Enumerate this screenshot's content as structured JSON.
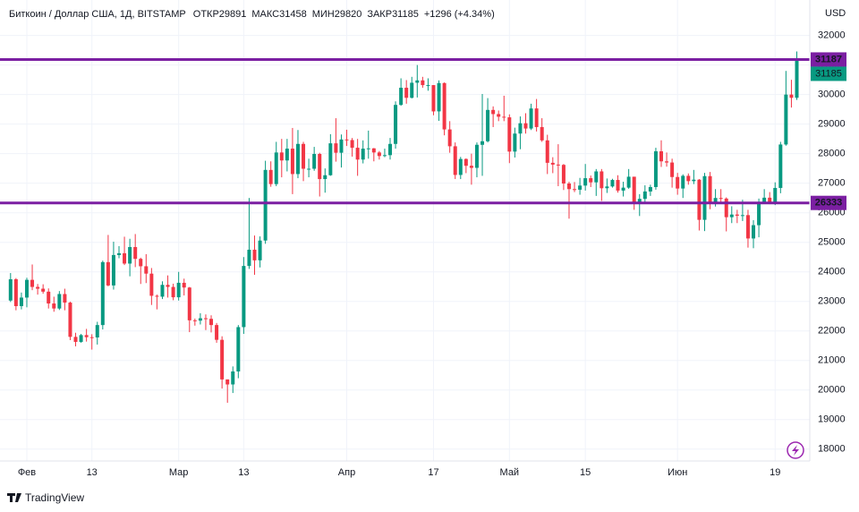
{
  "chart_data": {
    "type": "candlestick",
    "title": "Биткоин / Доллар США, 1Д, BITSTAMP",
    "ohlc_labels": [
      "ОТКР",
      "МАКС",
      "МИН",
      "ЗАКР"
    ],
    "change": "+1296 (+4.34%)",
    "currency": "USD",
    "brand": "TradingView",
    "up_color": "#089981",
    "down_color": "#f23645",
    "grid": true,
    "ylim": [
      17600,
      33200
    ],
    "yticks": [
      18000,
      19000,
      20000,
      21000,
      22000,
      23000,
      24000,
      25000,
      26000,
      27000,
      28000,
      29000,
      30000,
      31000,
      32000
    ],
    "levels": [
      {
        "value": 31187,
        "color": "#7b1fa2"
      },
      {
        "value": 26333,
        "color": "#7b1fa2"
      }
    ],
    "xticks": [
      {
        "value": "02-01",
        "label": "Фев"
      },
      {
        "value": "02-13",
        "label": "13"
      },
      {
        "value": "03-01",
        "label": "Мар"
      },
      {
        "value": "03-13",
        "label": "13"
      },
      {
        "value": "04-01",
        "label": "Апр"
      },
      {
        "value": "04-17",
        "label": "17"
      },
      {
        "value": "05-01",
        "label": "Май"
      },
      {
        "value": "05-15",
        "label": "15"
      },
      {
        "value": "06-01",
        "label": "Июн"
      },
      {
        "value": "06-19",
        "label": "19"
      }
    ],
    "x": [
      "01-29",
      "01-30",
      "01-31",
      "02-01",
      "02-02",
      "02-03",
      "02-04",
      "02-05",
      "02-06",
      "02-07",
      "02-08",
      "02-09",
      "02-10",
      "02-11",
      "02-12",
      "02-13",
      "02-14",
      "02-15",
      "02-16",
      "02-17",
      "02-18",
      "02-19",
      "02-20",
      "02-21",
      "02-22",
      "02-23",
      "02-24",
      "02-25",
      "02-26",
      "02-27",
      "02-28",
      "03-01",
      "03-02",
      "03-03",
      "03-04",
      "03-05",
      "03-06",
      "03-07",
      "03-08",
      "03-09",
      "03-10",
      "03-11",
      "03-12",
      "03-13",
      "03-14",
      "03-15",
      "03-16",
      "03-17",
      "03-18",
      "03-19",
      "03-20",
      "03-21",
      "03-22",
      "03-23",
      "03-24",
      "03-25",
      "03-26",
      "03-27",
      "03-28",
      "03-29",
      "03-30",
      "03-31",
      "04-01",
      "04-02",
      "04-03",
      "04-04",
      "04-05",
      "04-06",
      "04-07",
      "04-08",
      "04-09",
      "04-10",
      "04-11",
      "04-12",
      "04-13",
      "04-14",
      "04-15",
      "04-16",
      "04-17",
      "04-18",
      "04-19",
      "04-20",
      "04-21",
      "04-22",
      "04-23",
      "04-24",
      "04-25",
      "04-26",
      "04-27",
      "04-28",
      "04-29",
      "04-30",
      "05-01",
      "05-02",
      "05-03",
      "05-04",
      "05-05",
      "05-06",
      "05-07",
      "05-08",
      "05-09",
      "05-10",
      "05-11",
      "05-12",
      "05-13",
      "05-14",
      "05-15",
      "05-16",
      "05-17",
      "05-18",
      "05-19",
      "05-20",
      "05-21",
      "05-22",
      "05-23",
      "05-24",
      "05-25",
      "05-26",
      "05-27",
      "05-28",
      "05-29",
      "05-30",
      "05-31",
      "06-01",
      "06-02",
      "06-03",
      "06-04",
      "06-05",
      "06-06",
      "06-07",
      "06-08",
      "06-09",
      "06-10",
      "06-11",
      "06-12",
      "06-13",
      "06-14",
      "06-15",
      "06-16",
      "06-17",
      "06-18",
      "06-19",
      "06-20",
      "06-21",
      "06-22",
      "06-23"
    ],
    "open": [
      23030,
      23750,
      22840,
      23130,
      23730,
      23490,
      23430,
      23330,
      22930,
      22760,
      23250,
      22960,
      21800,
      21630,
      21860,
      21790,
      21780,
      22200,
      24330,
      23540,
      24570,
      24630,
      24280,
      24840,
      24440,
      24190,
      23940,
      23190,
      23160,
      23560,
      23490,
      23140,
      23630,
      23470,
      22360,
      22350,
      22430,
      22410,
      22200,
      21700,
      20360,
      20190,
      20630,
      22130,
      24200,
      24750,
      24390,
      25060,
      27450,
      26970,
      28040,
      27770,
      28170,
      27310,
      28330,
      27490,
      27490,
      27990,
      27140,
      27270,
      28350,
      28030,
      28480,
      28460,
      28200,
      27800,
      28170,
      28180,
      28040,
      27920,
      27950,
      28330,
      29650,
      30230,
      29890,
      30400,
      30480,
      30320,
      30320,
      29430,
      30390,
      28820,
      28250,
      27280,
      27820,
      27590,
      27520,
      28300,
      28420,
      29480,
      29340,
      29250,
      29230,
      28070,
      28680,
      29030,
      28850,
      29530,
      28900,
      28450,
      27690,
      27630,
      27620,
      26990,
      26800,
      26780,
      26920,
      27170,
      27030,
      27400,
      26830,
      26890,
      27110,
      26750,
      26850,
      27220,
      26330,
      26470,
      26720,
      26870,
      28080,
      27740,
      27700,
      27210,
      26820,
      27250,
      27070,
      27120,
      25760,
      27240,
      26350,
      26500,
      26480,
      25850,
      25940,
      25900,
      25920,
      25130,
      25580,
      26340,
      26510,
      26340,
      26840,
      28310,
      30000,
      29891
    ],
    "high": [
      23960,
      23790,
      23300,
      23800,
      24250,
      23590,
      23580,
      23440,
      23160,
      23350,
      23430,
      22990,
      21940,
      21900,
      22070,
      21890,
      22310,
      24380,
      25250,
      25020,
      24870,
      25190,
      25120,
      25280,
      24480,
      24600,
      24130,
      23230,
      23680,
      23880,
      23600,
      24000,
      23770,
      23490,
      22420,
      22600,
      22560,
      22530,
      22270,
      21820,
      20360,
      20800,
      22200,
      24500,
      26500,
      25230,
      25200,
      27760,
      27740,
      28400,
      28500,
      28500,
      28870,
      28800,
      28400,
      27830,
      28230,
      28030,
      27500,
      28660,
      29200,
      28650,
      28810,
      28530,
      28500,
      28450,
      28780,
      28190,
      28090,
      28170,
      28530,
      29770,
      30550,
      30490,
      30600,
      31000,
      30600,
      30550,
      30320,
      30480,
      30410,
      29100,
      28380,
      27890,
      27840,
      28000,
      28380,
      30020,
      29880,
      29600,
      29460,
      29960,
      29330,
      28880,
      29260,
      29370,
      29690,
      29850,
      29200,
      28640,
      27880,
      28320,
      27650,
      27050,
      27040,
      27180,
      27650,
      27260,
      27480,
      27480,
      27160,
      27150,
      27270,
      27050,
      27480,
      27220,
      26630,
      26930,
      26950,
      28200,
      28450,
      28040,
      27830,
      27350,
      27300,
      27330,
      27450,
      27140,
      27350,
      27380,
      26800,
      26800,
      26520,
      26220,
      26100,
      26440,
      26100,
      25750,
      26480,
      26800,
      26700,
      27030,
      28400,
      30800,
      30500,
      31458
    ],
    "low": [
      22980,
      22700,
      22730,
      22800,
      23380,
      23230,
      23260,
      22760,
      22650,
      22710,
      22700,
      21690,
      21480,
      21600,
      21640,
      21370,
      21540,
      22050,
      23510,
      23400,
      24460,
      24230,
      23850,
      24160,
      23590,
      23620,
      22880,
      22730,
      23080,
      23130,
      23040,
      23030,
      23200,
      21960,
      22180,
      22220,
      22030,
      21950,
      21600,
      20050,
      19570,
      19900,
      20400,
      21900,
      24100,
      23900,
      24150,
      24950,
      26880,
      26900,
      27200,
      27400,
      26630,
      27170,
      27070,
      27200,
      27420,
      26550,
      26680,
      27250,
      27730,
      27530,
      28260,
      27900,
      27250,
      27670,
      27830,
      27740,
      27800,
      27880,
      27800,
      28170,
      29620,
      29690,
      29870,
      29900,
      30230,
      30130,
      29300,
      29110,
      28620,
      28030,
      27140,
      27140,
      27340,
      26950,
      27200,
      27250,
      28380,
      28900,
      29100,
      29100,
      27680,
      27870,
      28150,
      28680,
      28800,
      28750,
      28400,
      27310,
      27340,
      26900,
      26770,
      25800,
      26700,
      26610,
      26750,
      26870,
      26570,
      26400,
      26670,
      26850,
      26680,
      26550,
      26810,
      26100,
      25890,
      26350,
      26570,
      26780,
      27550,
      27560,
      26850,
      26610,
      26500,
      26950,
      26970,
      25400,
      25380,
      26120,
      26210,
      26300,
      25370,
      25650,
      25650,
      25720,
      24820,
      24800,
      25170,
      26320,
      26290,
      26260,
      26660,
      28270,
      29560,
      29820
    ],
    "close": [
      23750,
      22840,
      23130,
      23730,
      23490,
      23430,
      23330,
      22930,
      22760,
      23250,
      22960,
      21800,
      21630,
      21860,
      21790,
      21780,
      22200,
      24330,
      23540,
      24570,
      24630,
      24280,
      24840,
      24440,
      24190,
      23940,
      23190,
      23160,
      23560,
      23490,
      23140,
      23630,
      23470,
      22360,
      22350,
      22430,
      22410,
      22200,
      21700,
      20360,
      20190,
      20630,
      22130,
      24200,
      24750,
      24390,
      25060,
      27450,
      26970,
      28040,
      27770,
      28170,
      27310,
      28330,
      27490,
      27490,
      27990,
      27140,
      27270,
      28350,
      28030,
      28480,
      28460,
      28200,
      27800,
      28170,
      28180,
      28040,
      27920,
      27950,
      28330,
      29650,
      30230,
      29890,
      30400,
      30480,
      30320,
      30320,
      29430,
      30390,
      28820,
      28250,
      27280,
      27820,
      27590,
      27520,
      28300,
      28420,
      29480,
      29340,
      29250,
      29230,
      28070,
      28680,
      29030,
      28850,
      29530,
      28900,
      28450,
      27690,
      27630,
      27620,
      26990,
      26800,
      26780,
      26920,
      27170,
      27030,
      27400,
      26830,
      26890,
      27110,
      26750,
      26850,
      27220,
      26330,
      26470,
      26720,
      26870,
      28080,
      27740,
      27700,
      27210,
      26820,
      27250,
      27070,
      27120,
      25760,
      27240,
      26350,
      26500,
      26480,
      25850,
      25940,
      25900,
      25920,
      25130,
      25580,
      26340,
      26510,
      26340,
      26840,
      28310,
      30000,
      29890,
      31185
    ]
  }
}
